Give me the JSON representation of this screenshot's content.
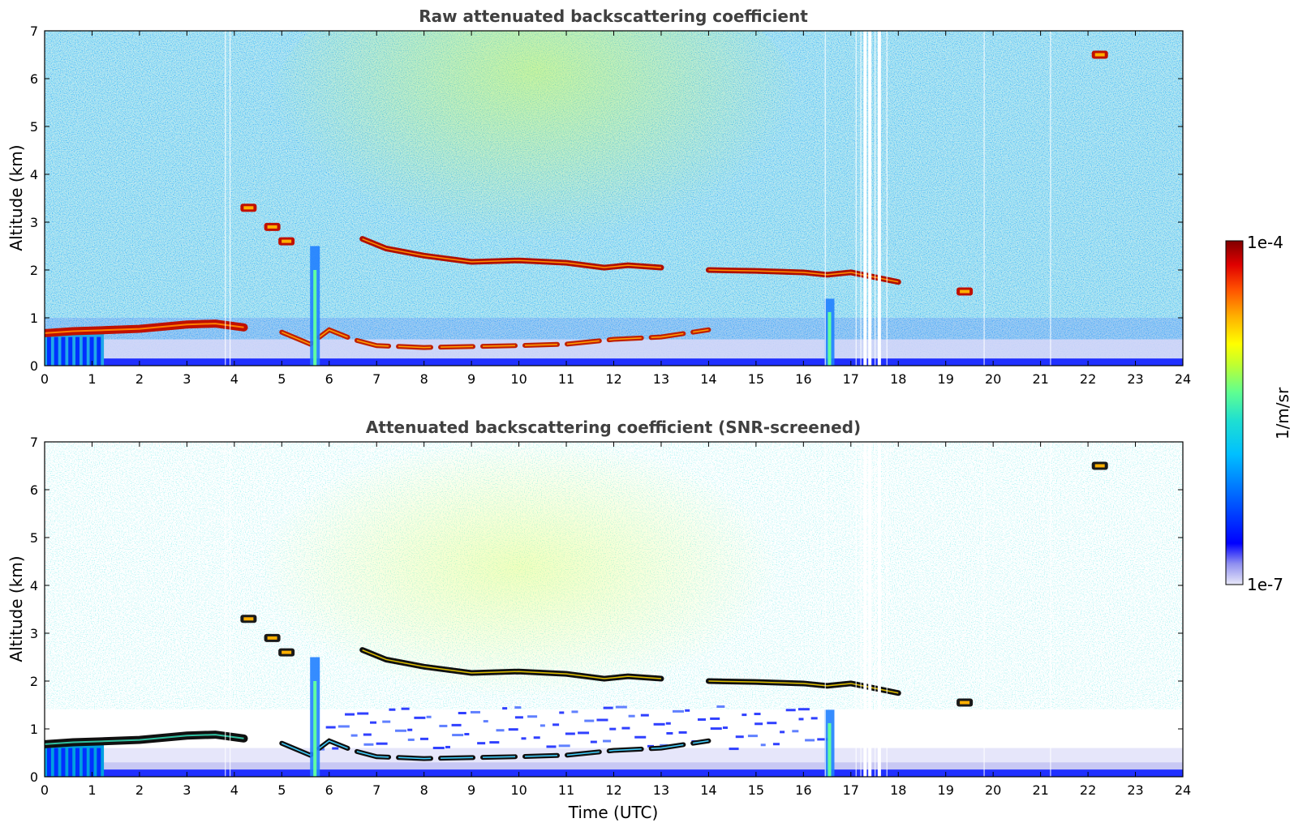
{
  "chart_data": [
    {
      "type": "heatmap",
      "title": "Raw attenuated backscattering coefficient",
      "xlabel": "",
      "ylabel": "Altitude (km)",
      "xlim": [
        0,
        24
      ],
      "ylim": [
        0,
        7
      ],
      "x_ticks": [
        "0",
        "1",
        "2",
        "3",
        "4",
        "5",
        "6",
        "7",
        "8",
        "9",
        "10",
        "11",
        "12",
        "13",
        "14",
        "15",
        "16",
        "17",
        "18",
        "19",
        "20",
        "21",
        "22",
        "23",
        "24"
      ],
      "y_ticks": [
        "0",
        "1",
        "2",
        "3",
        "4",
        "5",
        "6",
        "7"
      ],
      "features": {
        "boundary_layer_top": [
          [
            0,
            0.68
          ],
          [
            0.6,
            0.72
          ],
          [
            1.2,
            0.74
          ],
          [
            2,
            0.77
          ],
          [
            3,
            0.86
          ],
          [
            3.6,
            0.88
          ],
          [
            4.2,
            0.8
          ]
        ],
        "elevated_layer": [
          [
            6.7,
            2.65
          ],
          [
            7.2,
            2.45
          ],
          [
            8,
            2.3
          ],
          [
            9,
            2.17
          ],
          [
            10,
            2.2
          ],
          [
            11,
            2.15
          ],
          [
            11.8,
            2.05
          ],
          [
            12.3,
            2.1
          ],
          [
            13,
            2.05
          ],
          [
            14,
            2.0
          ],
          [
            15,
            1.98
          ],
          [
            16,
            1.95
          ],
          [
            16.5,
            1.9
          ],
          [
            17,
            1.95
          ],
          [
            17.5,
            1.85
          ],
          [
            18,
            1.75
          ]
        ],
        "lower_layer": [
          [
            5,
            0.7
          ],
          [
            5.6,
            0.45
          ],
          [
            6,
            0.75
          ],
          [
            6.5,
            0.55
          ],
          [
            7,
            0.42
          ],
          [
            8,
            0.38
          ],
          [
            9,
            0.4
          ],
          [
            10,
            0.42
          ],
          [
            11,
            0.45
          ],
          [
            12,
            0.55
          ],
          [
            13,
            0.6
          ],
          [
            14,
            0.75
          ]
        ],
        "isolated_clouds": [
          [
            4.3,
            3.3
          ],
          [
            4.8,
            2.9
          ],
          [
            5.1,
            2.6
          ],
          [
            19.4,
            1.55
          ],
          [
            22.25,
            6.5
          ]
        ],
        "precipitation_columns": [
          5.7,
          16.55
        ],
        "missing_data_times": [
          17.3,
          17.4,
          17.6
        ]
      }
    },
    {
      "type": "heatmap",
      "title": "Attenuated backscattering coefficient (SNR-screened)",
      "xlabel": "Time (UTC)",
      "ylabel": "Altitude (km)",
      "xlim": [
        0,
        24
      ],
      "ylim": [
        0,
        7
      ],
      "x_ticks": [
        "0",
        "1",
        "2",
        "3",
        "4",
        "5",
        "6",
        "7",
        "8",
        "9",
        "10",
        "11",
        "12",
        "13",
        "14",
        "15",
        "16",
        "17",
        "18",
        "19",
        "20",
        "21",
        "22",
        "23",
        "24"
      ],
      "y_ticks": [
        "0",
        "1",
        "2",
        "3",
        "4",
        "5",
        "6",
        "7"
      ],
      "screened": true
    }
  ],
  "colorbar": {
    "label": "1/m/sr",
    "min_label": "1e-7",
    "max_label": "1e-4",
    "colormap": [
      "#e8e8f8",
      "#9090f0",
      "#0000ff",
      "#0060ff",
      "#00c0ff",
      "#20e0d0",
      "#60ff90",
      "#c0ff30",
      "#ffff00",
      "#ffb000",
      "#ff5000",
      "#e00000",
      "#800000"
    ]
  }
}
